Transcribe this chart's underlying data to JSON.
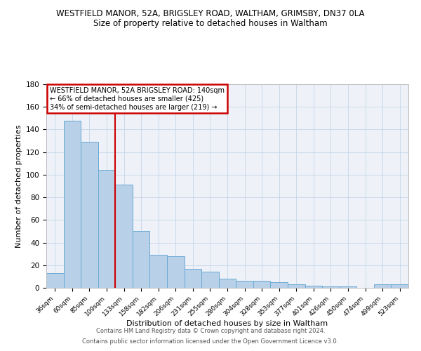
{
  "title1": "WESTFIELD MANOR, 52A, BRIGSLEY ROAD, WALTHAM, GRIMSBY, DN37 0LA",
  "title2": "Size of property relative to detached houses in Waltham",
  "xlabel": "Distribution of detached houses by size in Waltham",
  "ylabel": "Number of detached properties",
  "categories": [
    "36sqm",
    "60sqm",
    "85sqm",
    "109sqm",
    "133sqm",
    "158sqm",
    "182sqm",
    "206sqm",
    "231sqm",
    "255sqm",
    "280sqm",
    "304sqm",
    "328sqm",
    "353sqm",
    "377sqm",
    "401sqm",
    "426sqm",
    "450sqm",
    "474sqm",
    "499sqm",
    "523sqm"
  ],
  "values": [
    13,
    148,
    129,
    104,
    91,
    50,
    29,
    28,
    17,
    14,
    8,
    6,
    6,
    5,
    3,
    2,
    1,
    1,
    0,
    3,
    3
  ],
  "bar_color": "#b8d0e8",
  "bar_edge_color": "#6aaad4",
  "bg_color": "#eef2f8",
  "grid_color": "#c5d5e8",
  "property_line_x": 3.5,
  "property_line_color": "#cc0000",
  "annotation_title": "WESTFIELD MANOR, 52A BRIGSLEY ROAD: 140sqm",
  "annotation_line1": "← 66% of detached houses are smaller (425)",
  "annotation_line2": "34% of semi-detached houses are larger (219) →",
  "annotation_box_color": "#ffffff",
  "annotation_box_edge": "#cc0000",
  "ylim": [
    0,
    180
  ],
  "yticks": [
    0,
    20,
    40,
    60,
    80,
    100,
    120,
    140,
    160,
    180
  ],
  "footer1": "Contains HM Land Registry data © Crown copyright and database right 2024.",
  "footer2": "Contains public sector information licensed under the Open Government Licence v3.0."
}
